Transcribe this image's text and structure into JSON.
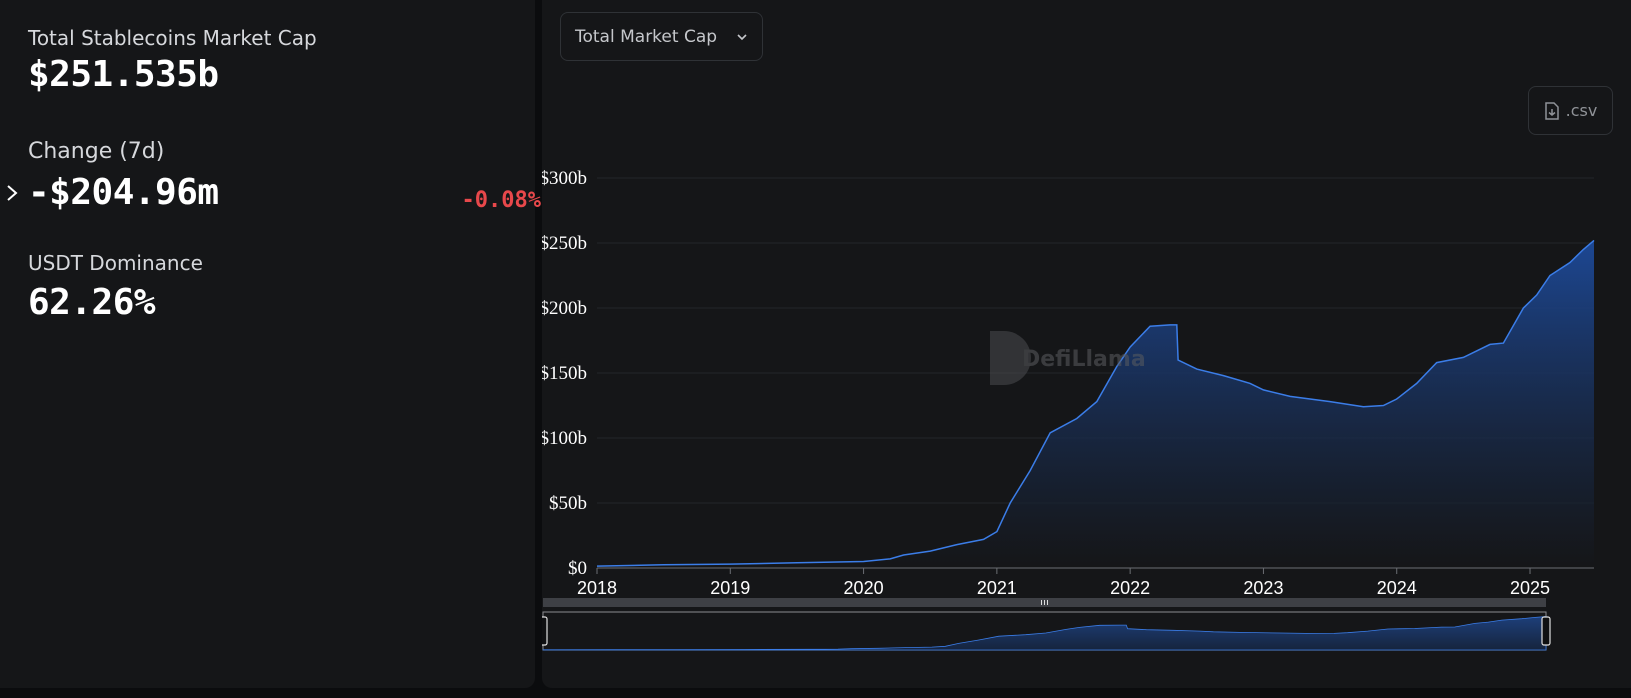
{
  "stats": {
    "total_label": "Total Stablecoins Market Cap",
    "total_value": "$251.535b",
    "change_label": "Change (7d)",
    "change_value": "-$204.96m",
    "change_pct": "-0.08%",
    "dominance_label": "USDT Dominance",
    "dominance_value": "62.26%"
  },
  "controls": {
    "dropdown_label": "Total Market Cap",
    "csv_label": ".csv"
  },
  "watermark": "DefiLlama",
  "colors": {
    "line": "#3b7de8",
    "fill_top": "#1d4a9a",
    "negative": "#e8484b",
    "panel": "#151618"
  },
  "chart_data": {
    "type": "area",
    "title": "",
    "xlabel": "",
    "ylabel": "",
    "ylim": [
      0,
      300
    ],
    "xlim": [
      2018.0,
      2025.48
    ],
    "y_unit": "billion USD",
    "yticks": [
      0,
      50,
      100,
      150,
      200,
      250,
      300
    ],
    "ytick_labels": [
      "$0",
      "$50b",
      "$100b",
      "$150b",
      "$200b",
      "$250b",
      "$300b"
    ],
    "xticks": [
      2018,
      2019,
      2020,
      2021,
      2022,
      2023,
      2024,
      2025
    ],
    "xtick_labels": [
      "2018",
      "2019",
      "2020",
      "2021",
      "2022",
      "2023",
      "2024",
      "2025"
    ],
    "grid": true,
    "series": [
      {
        "x": [
          2018.0,
          2018.5,
          2019.0,
          2019.5,
          2020.0,
          2020.2,
          2020.3,
          2020.5,
          2020.7,
          2020.9,
          2021.0,
          2021.1,
          2021.25,
          2021.4,
          2021.6,
          2021.75,
          2021.9,
          2022.0,
          2022.15,
          2022.3,
          2022.35,
          2022.36,
          2022.5,
          2022.7,
          2022.9,
          2023.0,
          2023.2,
          2023.5,
          2023.75,
          2023.9,
          2024.0,
          2024.15,
          2024.3,
          2024.5,
          2024.7,
          2024.8,
          2024.95,
          2025.05,
          2025.15,
          2025.3,
          2025.4,
          2025.48
        ],
        "y": [
          1.5,
          2.5,
          3,
          4,
          5,
          7,
          10,
          13,
          18,
          22,
          28,
          50,
          75,
          104,
          115,
          128,
          155,
          170,
          186,
          187,
          187,
          160,
          153,
          148,
          142,
          137,
          132,
          128,
          124,
          125,
          130,
          142,
          158,
          162,
          172,
          173,
          200,
          210,
          225,
          235,
          245,
          252
        ]
      }
    ]
  }
}
